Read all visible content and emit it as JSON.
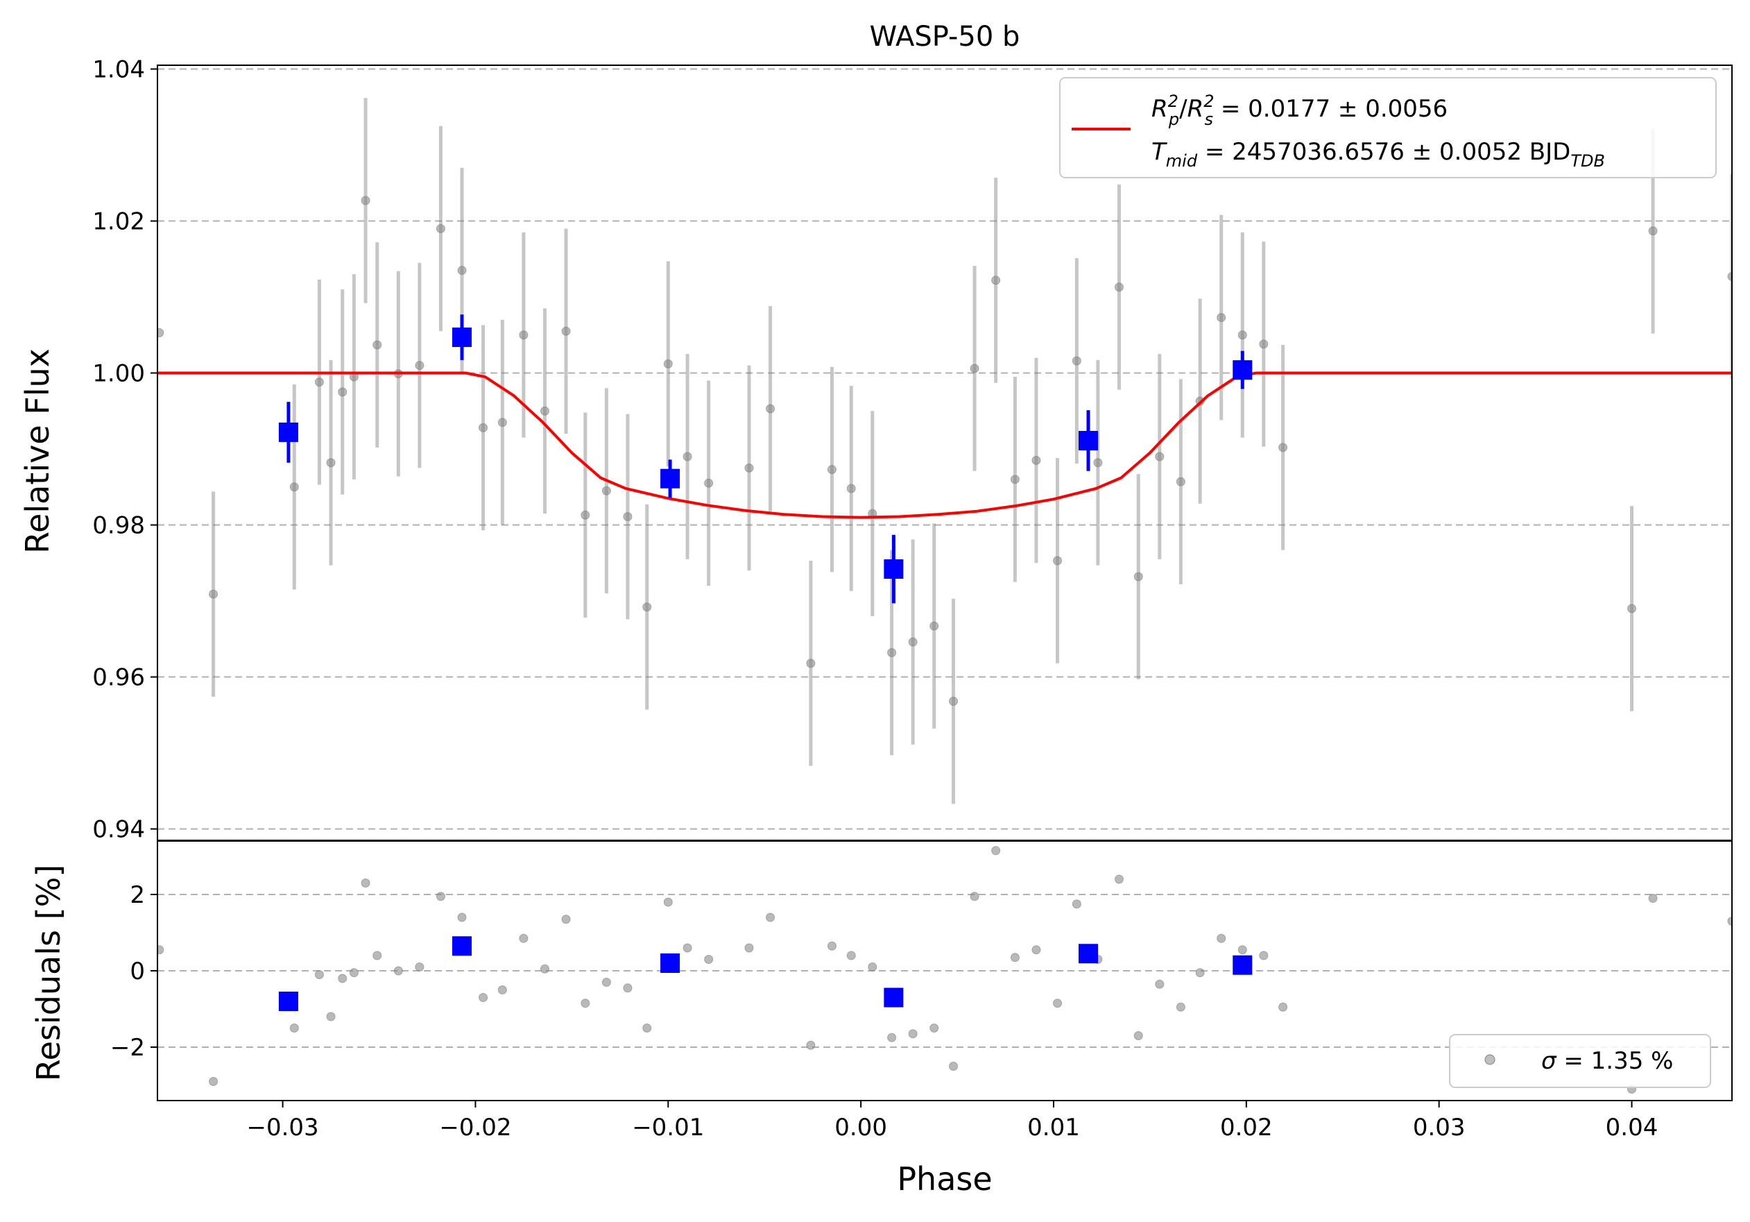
{
  "chart_data": [
    {
      "type": "scatter",
      "title": "WASP-50 b",
      "xlabel": "Phase",
      "ylabel": "Relative Flux",
      "xlim": [
        -0.0365,
        0.0452
      ],
      "ylim": [
        0.9385,
        1.0405
      ],
      "x_ticks": [
        "−0.03",
        "−0.02",
        "−0.01",
        "0.00",
        "0.01",
        "0.02",
        "0.03",
        "0.04"
      ],
      "y_ticks": [
        {
          "value": 0.94,
          "label": "0.94"
        },
        {
          "value": 0.96,
          "label": "0.96"
        },
        {
          "value": 0.98,
          "label": "0.98"
        },
        {
          "value": 1.0,
          "label": "1.00"
        },
        {
          "value": 1.02,
          "label": "1.02"
        },
        {
          "value": 1.04,
          "label": "1.04"
        }
      ],
      "grid": "horizontal dashed",
      "legend_position": "top-right",
      "legend": {
        "line_color": "#ff0000",
        "line1": {
          "sym": "R",
          "sup1": "2",
          "sub1": "p",
          "sep": "/",
          "sym2": "R",
          "sup2": "2",
          "sub2": "s",
          "rest": " = 0.0177 ± 0.0056"
        },
        "line2": {
          "sym": "T",
          "sub": "mid",
          "rest": " = 2457036.6576 ± 0.0052 BJD",
          "unit_sub": "TDB"
        }
      },
      "series": [
        {
          "kind": "raw",
          "color": "#808080",
          "points": [
            [
              -0.0364,
              1.0053,
              0
            ],
            [
              -0.0336,
              0.9709,
              0.0135
            ],
            [
              -0.0294,
              0.985,
              0.0135
            ],
            [
              -0.0281,
              0.9988,
              0.0135
            ],
            [
              -0.0275,
              0.9882,
              0.0135
            ],
            [
              -0.0269,
              0.9975,
              0.0135
            ],
            [
              -0.0263,
              0.9995,
              0.0135
            ],
            [
              -0.0257,
              1.0227,
              0.0135
            ],
            [
              -0.0251,
              1.0037,
              0.0135
            ],
            [
              -0.024,
              0.9999,
              0.0135
            ],
            [
              -0.0229,
              1.001,
              0.0135
            ],
            [
              -0.0218,
              1.019,
              0.0135
            ],
            [
              -0.0207,
              1.0135,
              0.0135
            ],
            [
              -0.0196,
              0.9928,
              0.0135
            ],
            [
              -0.0186,
              0.9935,
              0.0135
            ],
            [
              -0.0175,
              1.005,
              0.0135
            ],
            [
              -0.0164,
              0.995,
              0.0135
            ],
            [
              -0.0153,
              1.0055,
              0.0135
            ],
            [
              -0.0143,
              0.9813,
              0.0135
            ],
            [
              -0.0132,
              0.9845,
              0.0135
            ],
            [
              -0.0121,
              0.9811,
              0.0135
            ],
            [
              -0.0111,
              0.9692,
              0.0135
            ],
            [
              -0.01,
              1.0012,
              0.0135
            ],
            [
              -0.009,
              0.989,
              0.0135
            ],
            [
              -0.0079,
              0.9855,
              0.0135
            ],
            [
              -0.0058,
              0.9875,
              0.0135
            ],
            [
              -0.0047,
              0.9953,
              0.0135
            ],
            [
              -0.0026,
              0.9618,
              0.0135
            ],
            [
              -0.0015,
              0.9873,
              0.0135
            ],
            [
              -0.0005,
              0.9848,
              0.0135
            ],
            [
              0.0006,
              0.9815,
              0.0135
            ],
            [
              0.0016,
              0.9632,
              0.0135
            ],
            [
              0.0027,
              0.9646,
              0.0135
            ],
            [
              0.0038,
              0.9667,
              0.0135
            ],
            [
              0.0048,
              0.9568,
              0.0135
            ],
            [
              0.0059,
              1.0006,
              0.0135
            ],
            [
              0.007,
              1.0122,
              0.0135
            ],
            [
              0.008,
              0.986,
              0.0135
            ],
            [
              0.0091,
              0.9885,
              0.0135
            ],
            [
              0.0102,
              0.9753,
              0.0135
            ],
            [
              0.0112,
              1.0016,
              0.0135
            ],
            [
              0.0123,
              0.9882,
              0.0135
            ],
            [
              0.0134,
              1.0113,
              0.0135
            ],
            [
              0.0144,
              0.9732,
              0.0135
            ],
            [
              0.0155,
              0.989,
              0.0135
            ],
            [
              0.0166,
              0.9857,
              0.0135
            ],
            [
              0.0176,
              0.9963,
              0.0135
            ],
            [
              0.0187,
              1.0073,
              0.0135
            ],
            [
              0.0198,
              1.005,
              0.0135
            ],
            [
              0.0209,
              1.0038,
              0.0135
            ],
            [
              0.0219,
              0.9902,
              0.0135
            ],
            [
              0.04,
              0.969,
              0.0135
            ],
            [
              0.0411,
              1.0187,
              0.0135
            ],
            [
              0.0452,
              1.0127,
              0.0135
            ]
          ]
        },
        {
          "kind": "binned",
          "color": "#0000ff",
          "points": [
            [
              -0.0297,
              0.9922,
              0.004
            ],
            [
              -0.0207,
              1.0047,
              0.003
            ],
            [
              -0.0099,
              0.9861,
              0.0025
            ],
            [
              0.0017,
              0.9742,
              0.0045
            ],
            [
              0.0118,
              0.9911,
              0.004
            ],
            [
              0.0198,
              1.0004,
              0.0025
            ]
          ]
        },
        {
          "kind": "model",
          "color": "#ff0000",
          "points": [
            [
              -0.0365,
              1.0
            ],
            [
              -0.0205,
              1.0
            ],
            [
              -0.0195,
              0.9995
            ],
            [
              -0.018,
              0.997
            ],
            [
              -0.0165,
              0.9935
            ],
            [
              -0.015,
              0.9895
            ],
            [
              -0.0135,
              0.9862
            ],
            [
              -0.0122,
              0.9848
            ],
            [
              -0.01,
              0.9835
            ],
            [
              -0.008,
              0.9826
            ],
            [
              -0.006,
              0.9819
            ],
            [
              -0.004,
              0.9814
            ],
            [
              -0.002,
              0.9811
            ],
            [
              0.0,
              0.981
            ],
            [
              0.002,
              0.9811
            ],
            [
              0.004,
              0.9814
            ],
            [
              0.006,
              0.9818
            ],
            [
              0.008,
              0.9825
            ],
            [
              0.01,
              0.9834
            ],
            [
              0.0122,
              0.9848
            ],
            [
              0.0135,
              0.9862
            ],
            [
              0.015,
              0.9895
            ],
            [
              0.0165,
              0.9935
            ],
            [
              0.018,
              0.997
            ],
            [
              0.0195,
              0.9995
            ],
            [
              0.0205,
              1.0
            ],
            [
              0.0452,
              1.0
            ]
          ]
        }
      ]
    },
    {
      "type": "scatter",
      "xlabel": "Phase",
      "ylabel": "Residuals [%]",
      "xlim": [
        -0.0365,
        0.0452
      ],
      "ylim": [
        -3.4,
        3.4
      ],
      "y_ticks": [
        {
          "value": -2,
          "label": "−2"
        },
        {
          "value": 0,
          "label": "0"
        },
        {
          "value": 2,
          "label": "2"
        }
      ],
      "grid": "horizontal dashed",
      "legend_position": "bottom-right",
      "legend": {
        "sym": "σ",
        "rest": " = 1.35 %"
      },
      "series": [
        {
          "kind": "raw",
          "color": "#808080",
          "points": [
            [
              -0.0364,
              0.55
            ],
            [
              -0.0336,
              -2.9
            ],
            [
              -0.0294,
              -1.5
            ],
            [
              -0.0281,
              -0.1
            ],
            [
              -0.0275,
              -1.2
            ],
            [
              -0.0269,
              -0.2
            ],
            [
              -0.0263,
              -0.05
            ],
            [
              -0.0257,
              2.3
            ],
            [
              -0.0251,
              0.4
            ],
            [
              -0.024,
              0.0
            ],
            [
              -0.0229,
              0.1
            ],
            [
              -0.0218,
              1.95
            ],
            [
              -0.0207,
              1.4
            ],
            [
              -0.0196,
              -0.7
            ],
            [
              -0.0186,
              -0.5
            ],
            [
              -0.0175,
              0.85
            ],
            [
              -0.0164,
              0.05
            ],
            [
              -0.0153,
              1.35
            ],
            [
              -0.0143,
              -0.85
            ],
            [
              -0.0132,
              -0.3
            ],
            [
              -0.0121,
              -0.45
            ],
            [
              -0.0111,
              -1.5
            ],
            [
              -0.01,
              1.8
            ],
            [
              -0.009,
              0.6
            ],
            [
              -0.0079,
              0.3
            ],
            [
              -0.0058,
              0.6
            ],
            [
              -0.0047,
              1.4
            ],
            [
              -0.0026,
              -1.95
            ],
            [
              -0.0015,
              0.65
            ],
            [
              -0.0005,
              0.4
            ],
            [
              0.0006,
              0.1
            ],
            [
              0.0016,
              -1.75
            ],
            [
              0.0027,
              -1.65
            ],
            [
              0.0038,
              -1.5
            ],
            [
              0.0048,
              -2.5
            ],
            [
              0.0059,
              1.95
            ],
            [
              0.007,
              3.15
            ],
            [
              0.008,
              0.35
            ],
            [
              0.0091,
              0.55
            ],
            [
              0.0102,
              -0.85
            ],
            [
              0.0112,
              1.75
            ],
            [
              0.0123,
              0.3
            ],
            [
              0.0134,
              2.4
            ],
            [
              0.0144,
              -1.7
            ],
            [
              0.0155,
              -0.35
            ],
            [
              0.0166,
              -0.95
            ],
            [
              0.0176,
              -0.05
            ],
            [
              0.0187,
              0.85
            ],
            [
              0.0198,
              0.55
            ],
            [
              0.0209,
              0.4
            ],
            [
              0.0219,
              -0.95
            ],
            [
              0.04,
              -3.1
            ],
            [
              0.0411,
              1.9
            ],
            [
              0.0452,
              1.3
            ]
          ]
        },
        {
          "kind": "binned",
          "color": "#0000ff",
          "points": [
            [
              -0.0297,
              -0.8
            ],
            [
              -0.0207,
              0.65
            ],
            [
              -0.0099,
              0.2
            ],
            [
              0.0017,
              -0.7
            ],
            [
              0.0118,
              0.45
            ],
            [
              0.0198,
              0.15
            ]
          ]
        }
      ]
    }
  ]
}
